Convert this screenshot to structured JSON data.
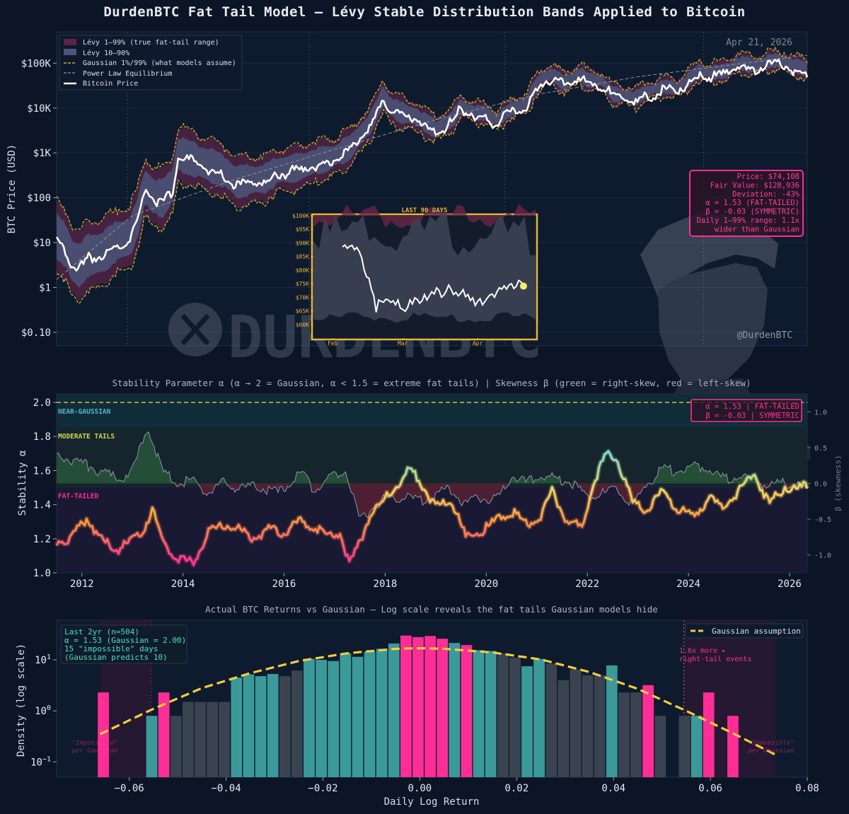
{
  "title": "DurdenBTC Fat Tail Model  —  Lévy Stable Distribution Bands Applied to Bitcoin",
  "watermark": {
    "handle": "@DurdenBTC",
    "brand": "DURDENBTC",
    "logo": "x-logo-icon"
  },
  "colors": {
    "background": "#0b1526",
    "panel": "#0e1a2d",
    "price": "#ffffff",
    "gaussian": "#c9b12a",
    "levy_outer": "#5b2447",
    "levy_inner": "#4d5776",
    "pink": "#ff2d95",
    "teal": "#3a9a9a",
    "gray_bar": "#3a4350",
    "yellow_dash": "#f5cc3a",
    "inset_border": "#e8b43a"
  },
  "chart_data": [
    {
      "id": "price_chart",
      "type": "line",
      "date_label": "Apr 21, 2026",
      "ylabel": "BTC Price (USD)",
      "yscale": "log",
      "ylim": [
        0.05,
        500000
      ],
      "xlim": [
        2011.5,
        2026.35
      ],
      "y_ticks": [
        {
          "v": 0.1,
          "label": "$0.10"
        },
        {
          "v": 1,
          "label": "$1"
        },
        {
          "v": 10,
          "label": "$10"
        },
        {
          "v": 100,
          "label": "$100"
        },
        {
          "v": 1000,
          "label": "$1K"
        },
        {
          "v": 10000,
          "label": "$10K"
        },
        {
          "v": 100000,
          "label": "$100K"
        }
      ],
      "legend": [
        "Lévy 1–99% (true fat-tail range)",
        "Lévy 10–90%",
        "Gaussian 1%/99% (what models assume)",
        "Power Law Equilibrium",
        "Bitcoin Price"
      ],
      "legend_position": "top-left",
      "halving_years": [
        2012.9,
        2016.5,
        2020.37,
        2024.3
      ],
      "series": [
        {
          "name": "Bitcoin Price",
          "x": [
            2011.5,
            2011.7,
            2011.8,
            2011.95,
            2012.1,
            2012.4,
            2012.7,
            2012.95,
            2013.1,
            2013.25,
            2013.4,
            2013.6,
            2013.8,
            2013.9,
            2014.1,
            2014.4,
            2014.7,
            2014.9,
            2015.05,
            2015.3,
            2015.6,
            2015.9,
            2016.1,
            2016.4,
            2016.6,
            2016.9,
            2017.1,
            2017.3,
            2017.5,
            2017.7,
            2017.85,
            2017.96,
            2018.1,
            2018.3,
            2018.6,
            2018.9,
            2019.0,
            2019.3,
            2019.5,
            2019.8,
            2020.0,
            2020.2,
            2020.5,
            2020.8,
            2020.95,
            2021.15,
            2021.3,
            2021.55,
            2021.85,
            2022.0,
            2022.3,
            2022.5,
            2022.8,
            2022.95,
            2023.2,
            2023.5,
            2023.8,
            2024.0,
            2024.2,
            2024.5,
            2024.75,
            2024.95,
            2025.1,
            2025.3,
            2025.5,
            2025.75,
            2025.9,
            2026.1,
            2026.3
          ],
          "y": [
            14,
            8,
            4,
            3,
            5,
            6,
            11,
            13,
            35,
            180,
            110,
            95,
            200,
            950,
            800,
            600,
            450,
            330,
            220,
            250,
            260,
            420,
            430,
            520,
            650,
            750,
            1000,
            1300,
            2500,
            4500,
            10000,
            19000,
            11000,
            8000,
            6500,
            4000,
            3500,
            5200,
            11000,
            8000,
            7500,
            5500,
            9500,
            13000,
            28000,
            50000,
            58000,
            35000,
            60000,
            42000,
            40000,
            20000,
            19500,
            16800,
            24000,
            30000,
            28000,
            43000,
            65000,
            62000,
            68000,
            100000,
            98000,
            85000,
            108000,
            115000,
            110000,
            90000,
            74108
          ]
        },
        {
          "name": "Power Law Equilibrium",
          "x": [
            2011.5,
            2013,
            2015,
            2017,
            2019,
            2021,
            2023,
            2026.35
          ],
          "y": [
            1.5,
            40,
            250,
            1200,
            5500,
            20000,
            50000,
            150000
          ]
        }
      ],
      "annotation_box": [
        "Price: $74,108",
        "Fair Value: $128,936",
        "Deviation: -43%",
        "α = 1.53  (FAT-TAILED)",
        "β = -0.03  (SYMMETRIC)",
        "Daily 1–99% range: 1.1x",
        "wider than Gaussian"
      ]
    },
    {
      "id": "inset_90d",
      "type": "line",
      "title": "LAST 90 DAYS",
      "ylim": [
        55000,
        100000
      ],
      "y_ticks": [
        {
          "v": 60000,
          "label": "$60K"
        },
        {
          "v": 65000,
          "label": "$65K"
        },
        {
          "v": 70000,
          "label": "$70K"
        },
        {
          "v": 75000,
          "label": "$75K"
        },
        {
          "v": 80000,
          "label": "$80K"
        },
        {
          "v": 85000,
          "label": "$85K"
        },
        {
          "v": 90000,
          "label": "$90K"
        },
        {
          "v": 95000,
          "label": "$95K"
        },
        {
          "v": 100000,
          "label": "$100K"
        }
      ],
      "x_ticks": [
        {
          "v": 8,
          "label": "Feb"
        },
        {
          "v": 37,
          "label": "Mar"
        },
        {
          "v": 68,
          "label": "Apr"
        }
      ],
      "xlim": [
        0,
        92
      ],
      "values": [
        88500,
        89200,
        88000,
        88700,
        89100,
        87500,
        88300,
        86800,
        84500,
        80000,
        77500,
        77000,
        73000,
        70500,
        64500,
        69000,
        68500,
        68200,
        69300,
        69000,
        68100,
        68700,
        67200,
        69000,
        66000,
        65500,
        64800,
        66200,
        69000,
        67500,
        69800,
        69200,
        67800,
        68700,
        71000,
        69000,
        70500,
        72000,
        71200,
        73500,
        72500,
        70000,
        70800,
        72300,
        74500,
        73000,
        71000,
        71800,
        70500,
        71500,
        72800,
        70200,
        71000,
        68800,
        69800,
        67000,
        68500,
        69500,
        67200,
        68400,
        69700,
        70800,
        71200,
        70000,
        72000,
        73500,
        73000,
        74200,
        73000,
        74500,
        75000,
        73200,
        74000,
        76200,
        75600,
        74108
      ]
    },
    {
      "id": "alpha_chart",
      "type": "line",
      "title": "Stability Parameter α  (α → 2 = Gaussian, α < 1.5 = extreme fat tails)  |  Skewness β (green = right-skew, red = left-skew)",
      "ylabel": "Stability α",
      "ylabel_right": "β (skewness)",
      "ylim": [
        1.0,
        2.05
      ],
      "y2lim": [
        -1.25,
        1.25
      ],
      "xlim": [
        2011.5,
        2026.35
      ],
      "y_ticks": [
        1.0,
        1.2,
        1.4,
        1.6,
        1.8,
        2.0
      ],
      "y_tick_labels": [
        "1.0",
        "1.2",
        "1.4",
        "1.6",
        "1.8",
        "2.0"
      ],
      "y2_ticks": [
        1.0,
        0.5,
        0.0,
        -0.5,
        -1.0
      ],
      "y2_tick_labels": [
        "1.0",
        "0.5",
        "0.0",
        "-0.5",
        "-1.0"
      ],
      "x_ticks": [
        2012,
        2014,
        2016,
        2018,
        2020,
        2022,
        2024,
        2026
      ],
      "x_tick_labels": [
        "2012",
        "2014",
        "2016",
        "2018",
        "2020",
        "2022",
        "2024",
        "2026"
      ],
      "zones": [
        {
          "label": "NEAR-GAUSSIAN",
          "from": 1.85,
          "to": 2.05
        },
        {
          "label": "MODERATE TAILS",
          "from": 1.5,
          "to": 1.85
        },
        {
          "label": "FAT-TAILED",
          "from": 1.0,
          "to": 1.5
        }
      ],
      "status_box": [
        "α = 1.53  |  FAT-TAILED",
        "β = -0.03  |  SYMMETRIC"
      ],
      "series": [
        {
          "name": "α",
          "x": [
            2011.5,
            2011.8,
            2012.1,
            2012.4,
            2012.7,
            2013.0,
            2013.2,
            2013.4,
            2013.6,
            2013.9,
            2014.2,
            2014.5,
            2014.8,
            2015.1,
            2015.4,
            2015.7,
            2016.0,
            2016.3,
            2016.6,
            2016.9,
            2017.1,
            2017.3,
            2017.5,
            2017.7,
            2018.0,
            2018.3,
            2018.5,
            2018.8,
            2019.0,
            2019.3,
            2019.6,
            2019.9,
            2020.2,
            2020.5,
            2020.8,
            2021.1,
            2021.3,
            2021.6,
            2021.9,
            2022.1,
            2022.4,
            2022.6,
            2022.9,
            2023.2,
            2023.5,
            2023.8,
            2024.1,
            2024.4,
            2024.7,
            2025.0,
            2025.3,
            2025.6,
            2025.9,
            2026.1,
            2026.35
          ],
          "y": [
            1.2,
            1.22,
            1.34,
            1.2,
            1.15,
            1.2,
            1.26,
            1.38,
            1.2,
            1.1,
            1.07,
            1.25,
            1.3,
            1.27,
            1.22,
            1.27,
            1.25,
            1.32,
            1.28,
            1.22,
            1.25,
            1.06,
            1.2,
            1.35,
            1.45,
            1.55,
            1.63,
            1.5,
            1.4,
            1.45,
            1.22,
            1.26,
            1.32,
            1.38,
            1.3,
            1.35,
            1.5,
            1.32,
            1.28,
            1.54,
            1.72,
            1.67,
            1.42,
            1.38,
            1.5,
            1.38,
            1.35,
            1.45,
            1.4,
            1.5,
            1.6,
            1.42,
            1.52,
            1.5,
            1.53
          ]
        },
        {
          "name": "β",
          "x": [
            2011.5,
            2011.8,
            2012.1,
            2012.4,
            2012.7,
            2013.0,
            2013.3,
            2013.6,
            2013.9,
            2014.2,
            2014.5,
            2014.8,
            2015.1,
            2015.5,
            2015.9,
            2016.3,
            2016.6,
            2016.9,
            2017.2,
            2017.5,
            2017.8,
            2018.1,
            2018.4,
            2018.7,
            2019.0,
            2019.3,
            2019.6,
            2019.9,
            2020.2,
            2020.5,
            2020.8,
            2021.1,
            2021.4,
            2021.7,
            2022.0,
            2022.3,
            2022.6,
            2022.9,
            2023.2,
            2023.5,
            2023.8,
            2024.1,
            2024.4,
            2024.7,
            2025.0,
            2025.3,
            2025.6,
            2025.9,
            2026.35
          ],
          "y": [
            0.45,
            0.35,
            0.3,
            0.2,
            0.1,
            0.2,
            0.85,
            0.2,
            0.05,
            0.1,
            -0.1,
            0.05,
            -0.05,
            0.0,
            -0.1,
            0.2,
            -0.05,
            0.1,
            0.25,
            -0.5,
            -0.25,
            -0.15,
            -0.15,
            -0.2,
            -0.1,
            -0.05,
            -0.25,
            -0.15,
            -0.2,
            0.15,
            0.05,
            0.15,
            0.1,
            0.05,
            -0.15,
            -0.1,
            -0.05,
            -0.25,
            0.05,
            0.25,
            0.2,
            0.3,
            0.25,
            0.1,
            0.15,
            0.1,
            0.0,
            0.05,
            -0.03
          ]
        }
      ]
    },
    {
      "id": "returns_hist",
      "type": "bar",
      "title": "Actual BTC Returns vs Gaussian  —  Log scale reveals the fat tails Gaussian models hide",
      "xlabel": "Daily Log Return",
      "ylabel": "Density (log scale)",
      "yscale": "log",
      "xlim": [
        -0.075,
        0.08
      ],
      "ylim": [
        0.05,
        60
      ],
      "x_ticks": [
        -0.06,
        -0.04,
        -0.02,
        0.0,
        0.02,
        0.04,
        0.06,
        0.08
      ],
      "x_tick_labels": [
        "−0.06",
        "−0.04",
        "−0.02",
        "0.00",
        "0.02",
        "0.04",
        "0.06",
        "0.08"
      ],
      "y_ticks": [
        {
          "v": 0.1,
          "base": "10",
          "exp": "−1"
        },
        {
          "v": 1,
          "base": "10",
          "exp": "0"
        },
        {
          "v": 10,
          "base": "10",
          "exp": "1"
        }
      ],
      "legend": [
        "Gaussian assumption"
      ],
      "info_box": [
        "Last 2yr (n=504)",
        "α = 1.53 (Gaussian = 2.00)",
        "15 \"impossible\" days",
        "(Gaussian predicts 10)"
      ],
      "right_tail_note": [
        "1.6x more ▸",
        "right-tail events"
      ],
      "impossible_label": [
        "\"Impossible\"",
        "per Gaussian"
      ],
      "tail_cutoffs": [
        -0.0555,
        0.0545
      ],
      "bin_width": 0.0025,
      "bin_starts": [
        -0.0665,
        -0.0615,
        -0.0565,
        -0.054,
        -0.0515,
        -0.049,
        -0.0465,
        -0.044,
        -0.0415,
        -0.039,
        -0.0365,
        -0.034,
        -0.0315,
        -0.029,
        -0.0265,
        -0.024,
        -0.0215,
        -0.019,
        -0.0165,
        -0.014,
        -0.0115,
        -0.009,
        -0.0065,
        -0.004,
        -0.0015,
        0.001,
        0.0035,
        0.006,
        0.0085,
        0.011,
        0.0135,
        0.016,
        0.0185,
        0.021,
        0.0235,
        0.026,
        0.0285,
        0.031,
        0.0335,
        0.036,
        0.0385,
        0.041,
        0.0435,
        0.046,
        0.0485,
        0.051,
        0.0535,
        0.056,
        0.0585,
        0.0635
      ],
      "values": [
        2.3,
        0,
        0.8,
        2.3,
        0.8,
        1.5,
        1.5,
        1.5,
        1.5,
        4.5,
        5.2,
        4.8,
        5.3,
        4.8,
        6.2,
        10.5,
        10.0,
        9.5,
        13.5,
        11.5,
        14.5,
        16.5,
        21.0,
        30.0,
        28.0,
        29.5,
        26.0,
        21.5,
        19.5,
        15.5,
        15.0,
        13.5,
        11.0,
        7.5,
        10.5,
        8.5,
        4.0,
        6.5,
        5.0,
        5.0,
        7.8,
        2.3,
        2.3,
        3.2,
        0.8,
        0,
        0.8,
        0.8,
        2.3,
        0.8
      ],
      "categories": [
        "pink",
        "empty",
        "teal",
        "pink",
        "gray",
        "gray",
        "gray",
        "gray",
        "gray",
        "teal",
        "teal",
        "teal",
        "teal",
        "gray",
        "gray",
        "teal",
        "teal",
        "teal",
        "teal",
        "teal",
        "teal",
        "teal",
        "teal",
        "pink",
        "pink",
        "pink",
        "pink",
        "teal",
        "pink",
        "teal",
        "teal",
        "gray",
        "gray",
        "teal",
        "teal",
        "gray",
        "gray",
        "gray",
        "gray",
        "gray",
        "teal",
        "gray",
        "gray",
        "pink",
        "gray",
        "empty",
        "gray",
        "teal",
        "pink",
        "pink"
      ],
      "gaussian_curve": {
        "x": [
          -0.066,
          -0.055,
          -0.045,
          -0.035,
          -0.025,
          -0.015,
          -0.005,
          0.0,
          0.005,
          0.015,
          0.025,
          0.035,
          0.045,
          0.055,
          0.065,
          0.074
        ],
        "y": [
          0.35,
          1.1,
          2.8,
          5.5,
          9.5,
          13.5,
          16.5,
          17.0,
          16.5,
          14.0,
          10.2,
          5.8,
          2.7,
          1.0,
          0.35,
          0.13
        ]
      }
    }
  ]
}
